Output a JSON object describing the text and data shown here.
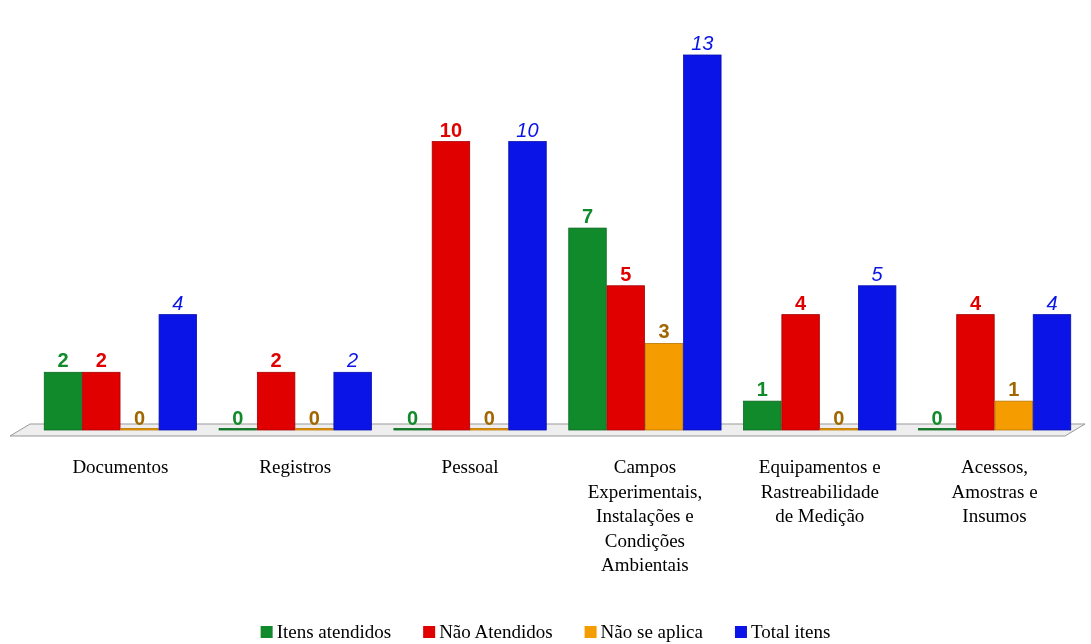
{
  "chart_data": {
    "type": "bar",
    "categories": [
      "Documentos",
      "Registros",
      "Pessoal",
      "Campos Experimentais, Instalações e Condições Ambientais",
      "Equipamentos e Rastreabilidade de Medição",
      "Acessos, Amostras e Insumos"
    ],
    "series": [
      {
        "name": "Itens atendidos",
        "color": "#108a2a",
        "values": [
          2,
          0,
          0,
          7,
          1,
          0
        ]
      },
      {
        "name": "Não Atendidos",
        "color": "#e00000",
        "values": [
          2,
          2,
          10,
          5,
          4,
          4
        ]
      },
      {
        "name": "Não se aplica",
        "color": "#f59c00",
        "values": [
          0,
          0,
          0,
          3,
          0,
          1
        ]
      },
      {
        "name": "Total itens",
        "color": "#0a14e6",
        "values": [
          4,
          2,
          10,
          13,
          5,
          4
        ]
      }
    ],
    "data_labels": true,
    "legend": "bottom"
  }
}
